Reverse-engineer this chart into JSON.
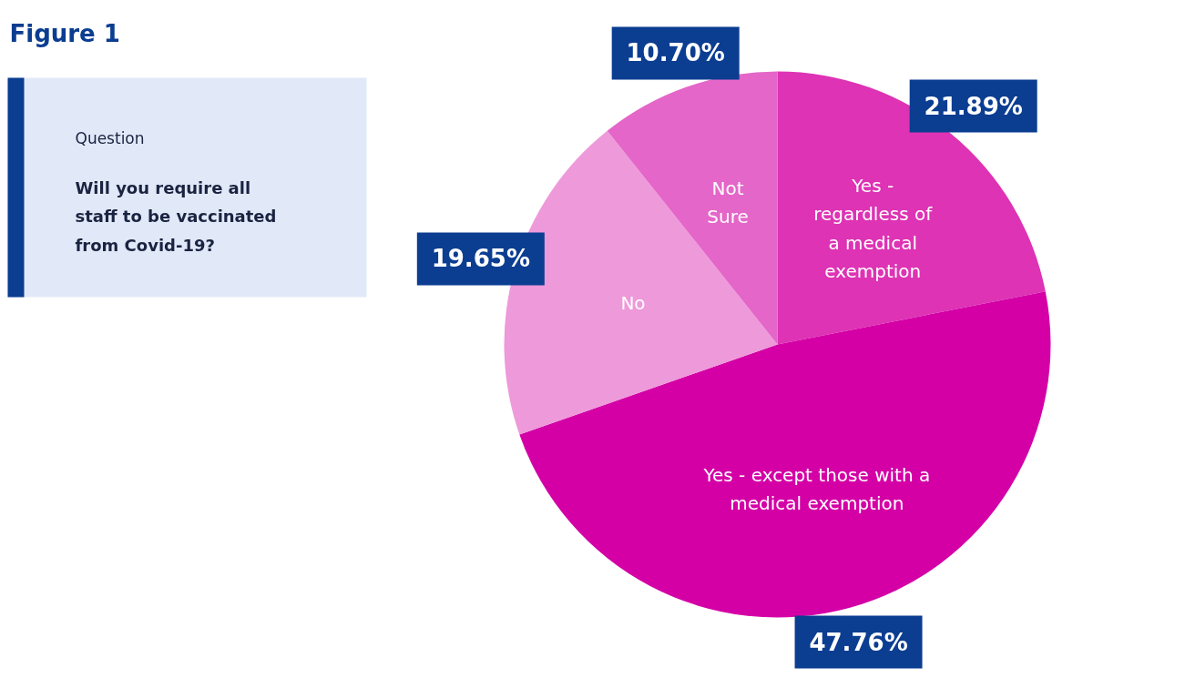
{
  "chart_data": {
    "type": "pie",
    "title": "Figure 1",
    "annotations": [
      "Question",
      "Will you require all staff to be vaccinated from Covid-19?"
    ],
    "categories": [
      "Yes - regardless of a medical exemption",
      "Yes - except those with a medical exemption",
      "No",
      "Not Sure"
    ],
    "values": [
      21.89,
      47.76,
      19.65,
      10.7
    ],
    "colors": [
      "#dd33b4",
      "#d400a6",
      "#ee99da",
      "#e466c8"
    ],
    "value_labels": [
      "21.89%",
      "47.76%",
      "19.65%",
      "10.70%"
    ]
  }
}
